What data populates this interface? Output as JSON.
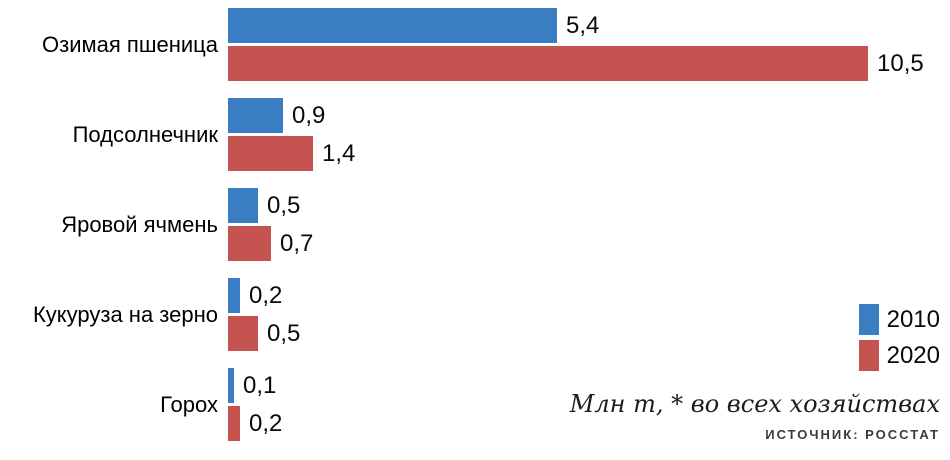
{
  "chart_data": {
    "type": "bar",
    "orientation": "horizontal",
    "title": "",
    "categories": [
      "Озимая пшеница",
      "Подсолнечник",
      "Яровой ячмень",
      "Кукуруза на зерно",
      "Горох"
    ],
    "series": [
      {
        "name": "2010",
        "color": "#3a7dc2",
        "values": [
          5.4,
          0.9,
          0.5,
          0.2,
          0.1
        ],
        "labels": [
          "5,4",
          "0,9",
          "0,5",
          "0,2",
          "0,1"
        ]
      },
      {
        "name": "2020",
        "color": "#c5534f",
        "values": [
          10.5,
          1.4,
          0.7,
          0.5,
          0.2
        ],
        "labels": [
          "10,5",
          "1,4",
          "0,7",
          "0,5",
          "0,2"
        ]
      }
    ],
    "xlim": [
      0,
      10.5
    ],
    "grid": false,
    "legend_position": "right",
    "unit_note": "Млн т, * во всех хозяйствах",
    "source_note": "ИСТОЧНИК: РОССТАТ"
  }
}
